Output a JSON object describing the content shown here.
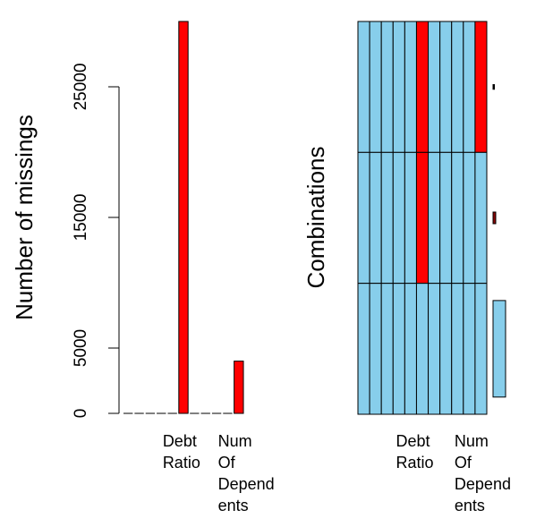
{
  "chart_data": [
    {
      "type": "bar",
      "title": "",
      "xlabel": "",
      "ylabel": "Number of missings",
      "ylim": [
        0,
        30000
      ],
      "yticks": [
        "0",
        "5000",
        "15000",
        "25000"
      ],
      "ytick_values": [
        0,
        5000,
        15000,
        25000
      ],
      "categories": [
        {
          "value": 0
        },
        {
          "value": 0
        },
        {
          "value": 0
        },
        {
          "value": 0
        },
        {
          "value": 0
        },
        {
          "value": 30000,
          "label_lines": [
            "Debt",
            "Ratio"
          ]
        },
        {
          "value": 0
        },
        {
          "value": 0
        },
        {
          "value": 0
        },
        {
          "value": 0,
          "label_lines": []
        },
        {
          "value": 4000,
          "label_lines": [
            "Num",
            "Of",
            "Depend",
            "ents"
          ]
        }
      ],
      "colors": {
        "missing": "#ff0000",
        "border": "#000000"
      }
    },
    {
      "type": "heatmap",
      "title": "",
      "ylabel": "Combinations",
      "columns": [
        {
          "label_lines": []
        },
        {
          "label_lines": []
        },
        {
          "label_lines": []
        },
        {
          "label_lines": []
        },
        {
          "label_lines": []
        },
        {
          "label_lines": [
            "Debt",
            "Ratio"
          ]
        },
        {
          "label_lines": []
        },
        {
          "label_lines": []
        },
        {
          "label_lines": []
        },
        {
          "label_lines": []
        },
        {
          "label_lines": [
            "Num",
            "Of",
            "Depend",
            "ents"
          ]
        }
      ],
      "combinations": [
        {
          "missing": [
            5,
            10
          ],
          "proportion": 0.04
        },
        {
          "missing": [
            5
          ],
          "proportion": 0.1
        },
        {
          "missing": [],
          "proportion": 0.83
        }
      ],
      "colors": {
        "observed": "#87ceeb",
        "missing": "#ff0000",
        "prop_missing_bar": "#8b0000",
        "prop_observed_bar": "#87ceeb"
      }
    }
  ]
}
